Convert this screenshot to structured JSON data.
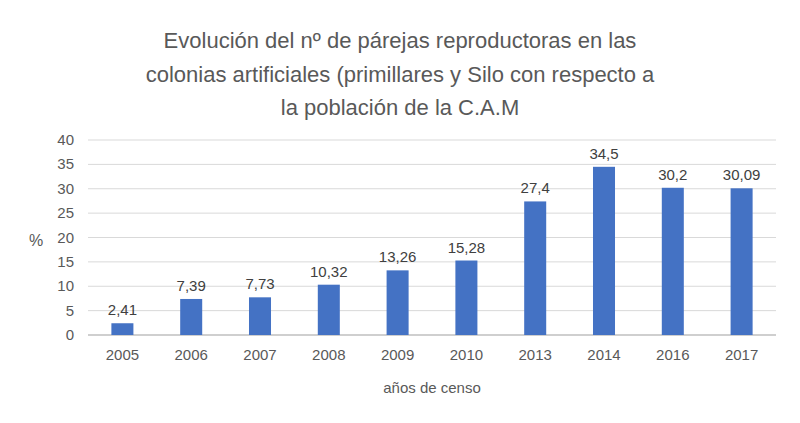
{
  "chart_data": {
    "type": "bar",
    "title": "Evolución del nº de párejas reproductoras en las colonias artificiales (primillares y Silo con respecto a la población de la C.A.M",
    "x_label": "años de censo",
    "y_label": "%",
    "categories": [
      "2005",
      "2006",
      "2007",
      "2008",
      "2009",
      "2010",
      "2013",
      "2014",
      "2016",
      "2017"
    ],
    "values": [
      2.41,
      7.39,
      7.73,
      10.32,
      13.26,
      15.28,
      27.4,
      34.5,
      30.2,
      30.09
    ],
    "value_labels": [
      "2,41",
      "7,39",
      "7,73",
      "10,32",
      "13,26",
      "15,28",
      "27,4",
      "34,5",
      "30,2",
      "30,09"
    ],
    "color": "#4472c4",
    "ylim": [
      0,
      40
    ],
    "yticks": [
      0,
      5,
      10,
      15,
      20,
      25,
      30,
      35,
      40
    ],
    "grid": true,
    "data_labels": true
  }
}
